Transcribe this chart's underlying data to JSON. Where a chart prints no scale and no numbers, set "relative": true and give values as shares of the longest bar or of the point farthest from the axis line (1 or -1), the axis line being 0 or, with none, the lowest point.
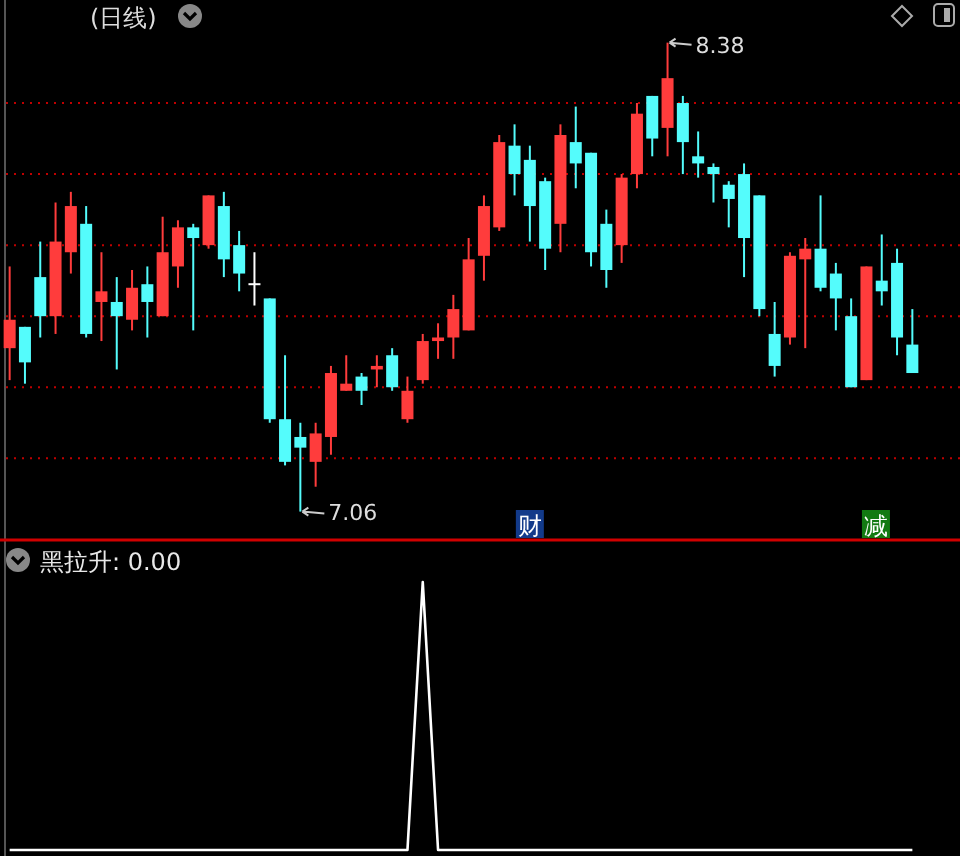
{
  "chart_data": [
    {
      "type": "candlestick",
      "title": "(日线)",
      "categories": [
        null,
        null,
        null,
        null,
        null,
        null,
        null,
        null,
        null,
        null,
        null,
        null,
        null,
        null,
        null,
        null,
        null,
        null,
        null,
        null,
        null,
        null,
        null,
        null,
        null,
        null,
        null,
        null,
        null,
        null,
        null,
        null,
        null,
        null,
        null,
        null,
        null,
        null,
        null,
        null,
        null,
        null,
        null,
        null,
        null,
        null,
        null,
        null,
        null,
        null,
        null,
        null,
        null,
        null,
        null,
        null,
        null,
        null,
        null,
        null
      ],
      "ohlc": [
        [
          7.52,
          7.75,
          7.43,
          7.6
        ],
        [
          7.58,
          7.58,
          7.42,
          7.48
        ],
        [
          7.72,
          7.82,
          7.55,
          7.61
        ],
        [
          7.61,
          7.93,
          7.56,
          7.82
        ],
        [
          7.79,
          7.96,
          7.73,
          7.92
        ],
        [
          7.87,
          7.92,
          7.55,
          7.56
        ],
        [
          7.65,
          7.79,
          7.54,
          7.68
        ],
        [
          7.65,
          7.72,
          7.46,
          7.61
        ],
        [
          7.6,
          7.74,
          7.57,
          7.69
        ],
        [
          7.7,
          7.75,
          7.55,
          7.65
        ],
        [
          7.61,
          7.89,
          7.61,
          7.79
        ],
        [
          7.75,
          7.88,
          7.69,
          7.86
        ],
        [
          7.86,
          7.87,
          7.57,
          7.83
        ],
        [
          7.81,
          7.95,
          7.8,
          7.95
        ],
        [
          7.92,
          7.96,
          7.72,
          7.77
        ],
        [
          7.81,
          7.85,
          7.68,
          7.73
        ],
        [
          7.7,
          7.79,
          7.64,
          7.7
        ],
        [
          7.66,
          7.66,
          7.31,
          7.32
        ],
        [
          7.32,
          7.5,
          7.19,
          7.2
        ],
        [
          7.27,
          7.31,
          7.06,
          7.24
        ],
        [
          7.2,
          7.31,
          7.13,
          7.28
        ],
        [
          7.27,
          7.47,
          7.22,
          7.45
        ],
        [
          7.4,
          7.5,
          7.4,
          7.42
        ],
        [
          7.44,
          7.45,
          7.36,
          7.4
        ],
        [
          7.46,
          7.5,
          7.41,
          7.47
        ],
        [
          7.5,
          7.52,
          7.4,
          7.41
        ],
        [
          7.32,
          7.44,
          7.31,
          7.4
        ],
        [
          7.43,
          7.56,
          7.42,
          7.54
        ],
        [
          7.54,
          7.59,
          7.49,
          7.55
        ],
        [
          7.55,
          7.67,
          7.49,
          7.63
        ],
        [
          7.57,
          7.83,
          7.57,
          7.77
        ],
        [
          7.78,
          7.95,
          7.71,
          7.92
        ],
        [
          7.86,
          8.12,
          7.85,
          8.1
        ],
        [
          8.09,
          8.15,
          7.95,
          8.01
        ],
        [
          8.05,
          8.09,
          7.82,
          7.92
        ],
        [
          7.99,
          8.0,
          7.74,
          7.8
        ],
        [
          7.87,
          8.15,
          7.79,
          8.12
        ],
        [
          8.1,
          8.2,
          7.97,
          8.04
        ],
        [
          8.07,
          8.07,
          7.75,
          7.79
        ],
        [
          7.87,
          7.91,
          7.69,
          7.74
        ],
        [
          7.81,
          8.01,
          7.76,
          8.0
        ],
        [
          8.01,
          8.21,
          7.97,
          8.18
        ],
        [
          8.23,
          8.23,
          8.06,
          8.11
        ],
        [
          8.14,
          8.38,
          8.06,
          8.28
        ],
        [
          8.21,
          8.23,
          8.01,
          8.1
        ],
        [
          8.06,
          8.13,
          8.0,
          8.04
        ],
        [
          8.03,
          8.04,
          7.93,
          8.01
        ],
        [
          7.98,
          7.99,
          7.86,
          7.94
        ],
        [
          8.01,
          8.04,
          7.72,
          7.83
        ],
        [
          7.95,
          7.95,
          7.61,
          7.63
        ],
        [
          7.56,
          7.65,
          7.44,
          7.47
        ],
        [
          7.55,
          7.79,
          7.53,
          7.78
        ],
        [
          7.77,
          7.83,
          7.52,
          7.8
        ],
        [
          7.8,
          7.95,
          7.68,
          7.69
        ],
        [
          7.73,
          7.76,
          7.57,
          7.66
        ],
        [
          7.61,
          7.66,
          7.41,
          7.41
        ],
        [
          7.43,
          7.75,
          7.43,
          7.75
        ],
        [
          7.71,
          7.84,
          7.64,
          7.68
        ],
        [
          7.76,
          7.8,
          7.5,
          7.55
        ],
        [
          7.53,
          7.63,
          7.45,
          7.45
        ]
      ],
      "colors": [
        "#ff3c3c",
        "#54fcfc",
        "#54fcfc",
        "#ff3c3c",
        "#ff3c3c",
        "#54fcfc",
        "#ff3c3c",
        "#54fcfc",
        "#ff3c3c",
        "#54fcfc",
        "#ff3c3c",
        "#ff3c3c",
        "#54fcfc",
        "#ff3c3c",
        "#54fcfc",
        "#54fcfc",
        "#ffffff",
        "#54fcfc",
        "#54fcfc",
        "#54fcfc",
        "#ff3c3c",
        "#ff3c3c",
        "#ff3c3c",
        "#54fcfc",
        "#ff3c3c",
        "#54fcfc",
        "#ff3c3c",
        "#ff3c3c",
        "#ff3c3c",
        "#ff3c3c",
        "#ff3c3c",
        "#ff3c3c",
        "#ff3c3c",
        "#54fcfc",
        "#54fcfc",
        "#54fcfc",
        "#ff3c3c",
        "#54fcfc",
        "#54fcfc",
        "#54fcfc",
        "#ff3c3c",
        "#ff3c3c",
        "#54fcfc",
        "#ff3c3c",
        "#54fcfc",
        "#54fcfc",
        "#54fcfc",
        "#54fcfc",
        "#54fcfc",
        "#54fcfc",
        "#54fcfc",
        "#ff3c3c",
        "#ff3c3c",
        "#54fcfc",
        "#54fcfc",
        "#54fcfc",
        "#ff3c3c",
        "#54fcfc",
        "#54fcfc",
        "#54fcfc"
      ],
      "ylim": [
        6.98,
        8.5
      ],
      "yticks": [
        {
          "value": 8.21,
          "label": null
        },
        {
          "value": 8.01,
          "label": null
        },
        {
          "value": 7.81,
          "label": null
        },
        {
          "value": 7.61,
          "label": null
        },
        {
          "value": 7.41,
          "label": null
        },
        {
          "value": 7.21,
          "label": null
        }
      ],
      "grid": "y",
      "annotations": [
        "8.38",
        "7.06",
        "财",
        "减"
      ]
    },
    {
      "type": "line",
      "title": "黑拉升: 0.00",
      "relative": true,
      "categories": [
        null,
        null,
        null,
        null,
        null,
        null,
        null,
        null,
        null,
        null,
        null,
        null,
        null,
        null,
        null,
        null,
        null,
        null,
        null,
        null,
        null,
        null,
        null,
        null,
        null,
        null,
        null,
        null,
        null,
        null,
        null,
        null,
        null,
        null,
        null,
        null,
        null,
        null,
        null,
        null,
        null,
        null,
        null,
        null,
        null,
        null,
        null,
        null,
        null,
        null,
        null,
        null,
        null,
        null,
        null,
        null,
        null,
        null,
        null,
        null
      ],
      "series": [
        {
          "color": "#ffffff",
          "values": [
            0,
            0,
            0,
            0,
            0,
            0,
            0,
            0,
            0,
            0,
            0,
            0,
            0,
            0,
            0,
            0,
            0,
            0,
            0,
            0,
            0,
            0,
            0,
            0,
            0,
            0,
            0,
            1,
            0,
            0,
            0,
            0,
            0,
            0,
            0,
            0,
            0,
            0,
            0,
            0,
            0,
            0,
            0,
            0,
            0,
            0,
            0,
            0,
            0,
            0,
            0,
            0,
            0,
            0,
            0,
            0,
            0,
            0,
            0,
            0
          ]
        }
      ]
    }
  ]
}
